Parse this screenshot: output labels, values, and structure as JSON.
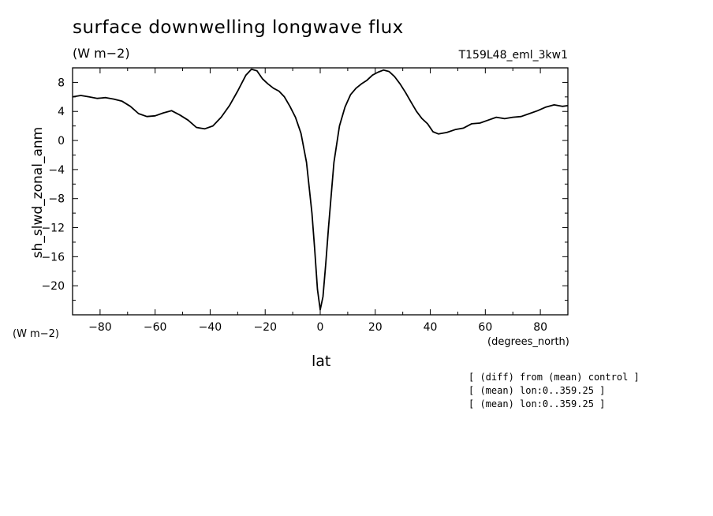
{
  "header": {
    "title": "surface downwelling longwave flux",
    "units": "(W m−2)",
    "run_id": "T159L48_eml_3kw1"
  },
  "axes": {
    "ylabel": "sh_slwd_zonal_anm",
    "y_units": "(W m−2)",
    "xlabel": "lat",
    "x_units": "(degrees_north)"
  },
  "notes": [
    "[ (diff) from (mean) control ]",
    "[ (mean) lon:0..359.25 ]",
    "[ (mean) lon:0..359.25 ]"
  ],
  "chart_data": {
    "type": "line",
    "title": "surface downwelling longwave flux",
    "xlabel": "lat",
    "ylabel": "sh_slwd_zonal_anm",
    "xlim": [
      -90,
      90
    ],
    "ylim": [
      -24,
      10
    ],
    "x_ticks": [
      -80,
      -60,
      -40,
      -20,
      0,
      20,
      40,
      60,
      80
    ],
    "y_ticks": [
      8,
      4,
      0,
      -4,
      -8,
      -12,
      -16,
      -20
    ],
    "grid": false,
    "series": [
      {
        "values": [
          [
            -90,
            6.0
          ],
          [
            -87,
            6.2
          ],
          [
            -84,
            6.0
          ],
          [
            -81,
            5.8
          ],
          [
            -78,
            5.9
          ],
          [
            -75,
            5.7
          ],
          [
            -72,
            5.4
          ],
          [
            -69,
            4.7
          ],
          [
            -66,
            3.7
          ],
          [
            -63,
            3.3
          ],
          [
            -60,
            3.4
          ],
          [
            -57,
            3.8
          ],
          [
            -54,
            4.1
          ],
          [
            -51,
            3.5
          ],
          [
            -48,
            2.8
          ],
          [
            -45,
            1.8
          ],
          [
            -42,
            1.6
          ],
          [
            -39,
            2.0
          ],
          [
            -36,
            3.2
          ],
          [
            -33,
            4.8
          ],
          [
            -30,
            6.8
          ],
          [
            -27,
            9.0
          ],
          [
            -25,
            9.8
          ],
          [
            -23,
            9.6
          ],
          [
            -21,
            8.5
          ],
          [
            -19,
            7.8
          ],
          [
            -17,
            7.2
          ],
          [
            -15,
            6.8
          ],
          [
            -13,
            6.0
          ],
          [
            -11,
            4.7
          ],
          [
            -9,
            3.2
          ],
          [
            -7,
            1.0
          ],
          [
            -5,
            -3.0
          ],
          [
            -3,
            -10.0
          ],
          [
            -2,
            -15.0
          ],
          [
            -1,
            -20.5
          ],
          [
            0,
            -23.3
          ],
          [
            1,
            -21.5
          ],
          [
            2,
            -17.0
          ],
          [
            3,
            -12.0
          ],
          [
            5,
            -3.0
          ],
          [
            7,
            2.0
          ],
          [
            9,
            4.6
          ],
          [
            11,
            6.3
          ],
          [
            13,
            7.2
          ],
          [
            15,
            7.8
          ],
          [
            17,
            8.3
          ],
          [
            19,
            9.0
          ],
          [
            21,
            9.4
          ],
          [
            23,
            9.7
          ],
          [
            25,
            9.5
          ],
          [
            27,
            8.8
          ],
          [
            29,
            7.8
          ],
          [
            31,
            6.6
          ],
          [
            33,
            5.3
          ],
          [
            35,
            4.0
          ],
          [
            37,
            3.0
          ],
          [
            39,
            2.3
          ],
          [
            41,
            1.2
          ],
          [
            43,
            0.9
          ],
          [
            46,
            1.1
          ],
          [
            49,
            1.5
          ],
          [
            52,
            1.7
          ],
          [
            55,
            2.3
          ],
          [
            58,
            2.4
          ],
          [
            61,
            2.8
          ],
          [
            64,
            3.2
          ],
          [
            67,
            3.0
          ],
          [
            70,
            3.2
          ],
          [
            73,
            3.3
          ],
          [
            76,
            3.7
          ],
          [
            79,
            4.1
          ],
          [
            82,
            4.6
          ],
          [
            85,
            4.9
          ],
          [
            88,
            4.7
          ],
          [
            90,
            4.8
          ]
        ]
      }
    ]
  }
}
